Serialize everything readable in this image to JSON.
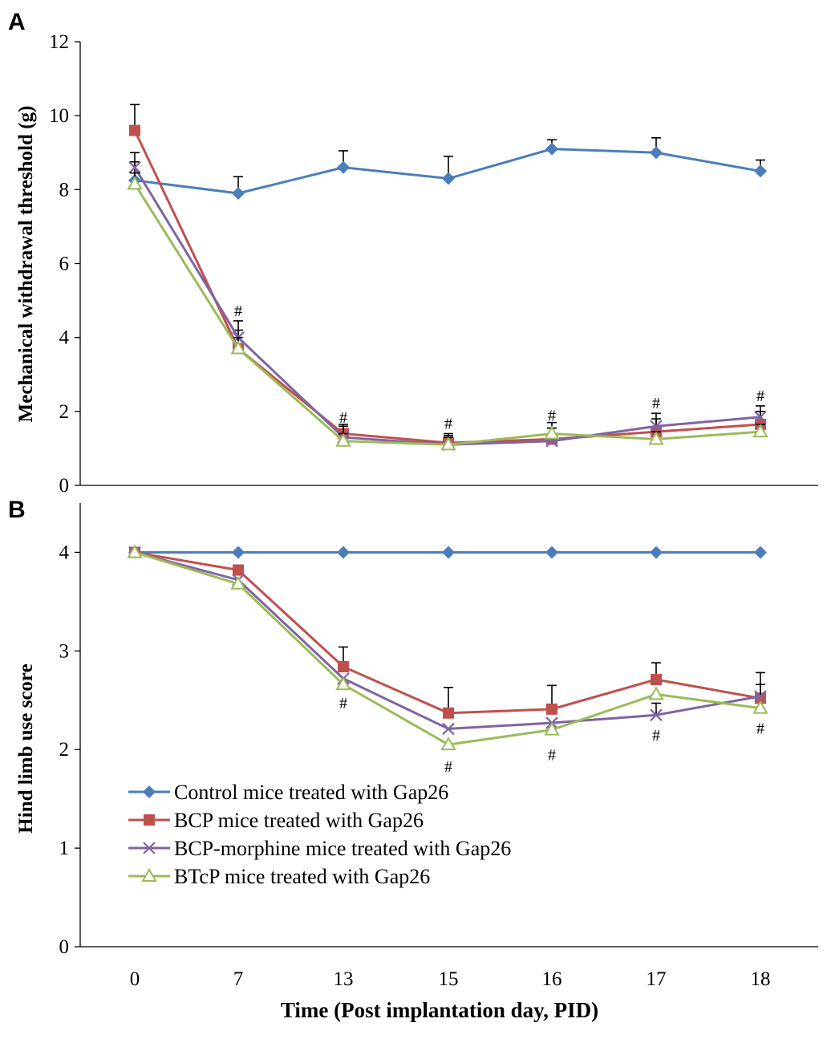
{
  "chart_data": [
    {
      "type": "line",
      "panel": "A",
      "ylabel": "Mechanical withdrawal threshold (g)",
      "ylim": [
        0,
        12
      ],
      "yticks": [
        0,
        2,
        4,
        6,
        8,
        10,
        12
      ],
      "categories": [
        "0",
        "7",
        "13",
        "15",
        "16",
        "17",
        "18"
      ],
      "series": [
        {
          "name": "Control mice treated with Gap26",
          "color": "#4a7ebb",
          "marker": "diamond",
          "values": [
            8.25,
            7.9,
            8.6,
            8.3,
            9.1,
            9.0,
            8.5
          ],
          "errors": [
            0.5,
            0.45,
            0.45,
            0.6,
            0.25,
            0.4,
            0.3
          ]
        },
        {
          "name": "BCP mice treated with Gap26",
          "color": "#c0504d",
          "marker": "square",
          "values": [
            9.6,
            3.7,
            1.4,
            1.15,
            1.25,
            1.45,
            1.65
          ],
          "errors": [
            0.7,
            0.5,
            0.25,
            0.2,
            0.3,
            0.35,
            0.35
          ]
        },
        {
          "name": "BCP-morphine mice treated with Gap26",
          "color": "#8064a2",
          "marker": "x",
          "values": [
            8.6,
            4.0,
            1.3,
            1.1,
            1.2,
            1.6,
            1.85
          ],
          "errors": [
            0.4,
            0.45,
            0.3,
            0.3,
            0.35,
            0.35,
            0.3
          ]
        },
        {
          "name": "BTcP mice treated with Gap26",
          "color": "#9bbb59",
          "marker": "triangle",
          "values": [
            8.15,
            3.7,
            1.2,
            1.1,
            1.4,
            1.25,
            1.45
          ],
          "errors": [
            0.3,
            0.3,
            0.2,
            0.2,
            0.3,
            0.2,
            0.2
          ]
        }
      ],
      "annotations": [
        {
          "category": "7",
          "text": "#"
        },
        {
          "category": "13",
          "text": "#"
        },
        {
          "category": "15",
          "text": "#"
        },
        {
          "category": "16",
          "text": "#"
        },
        {
          "category": "17",
          "text": "#"
        },
        {
          "category": "18",
          "text": "#"
        }
      ]
    },
    {
      "type": "line",
      "panel": "B",
      "ylabel": "Hind limb use score",
      "xlabel": "Time (Post implantation day, PID)",
      "ylim": [
        0,
        4.5
      ],
      "yticks": [
        0,
        1,
        2,
        3,
        4
      ],
      "categories": [
        "0",
        "7",
        "13",
        "15",
        "16",
        "17",
        "18"
      ],
      "series": [
        {
          "name": "Control mice treated with Gap26",
          "color": "#4a7ebb",
          "marker": "diamond",
          "values": [
            4.0,
            4.0,
            4.0,
            4.0,
            4.0,
            4.0,
            4.0
          ],
          "errors": [
            0,
            0,
            0,
            0,
            0,
            0,
            0
          ]
        },
        {
          "name": "BCP mice treated with Gap26",
          "color": "#c0504d",
          "marker": "square",
          "values": [
            4.0,
            3.82,
            2.84,
            2.37,
            2.41,
            2.71,
            2.52
          ],
          "errors": [
            0,
            0.05,
            0.2,
            0.26,
            0.24,
            0.17,
            0.26
          ]
        },
        {
          "name": "BCP-morphine mice treated with Gap26",
          "color": "#8064a2",
          "marker": "x",
          "values": [
            4.0,
            3.72,
            2.72,
            2.21,
            2.27,
            2.35,
            2.54
          ],
          "errors": [
            0,
            0,
            0,
            0,
            0,
            0.12,
            0.12
          ]
        },
        {
          "name": "BTcP mice treated with Gap26",
          "color": "#9bbb59",
          "marker": "triangle",
          "values": [
            4.0,
            3.68,
            2.66,
            2.05,
            2.2,
            2.56,
            2.42
          ],
          "errors": [
            0,
            0,
            0,
            0,
            0,
            0,
            0
          ]
        }
      ],
      "annotations": [
        {
          "category": "13",
          "text": "#"
        },
        {
          "category": "15",
          "text": "#"
        },
        {
          "category": "16",
          "text": "#"
        },
        {
          "category": "17",
          "text": "#"
        },
        {
          "category": "18",
          "text": "#"
        }
      ],
      "legend": "center-left"
    }
  ]
}
